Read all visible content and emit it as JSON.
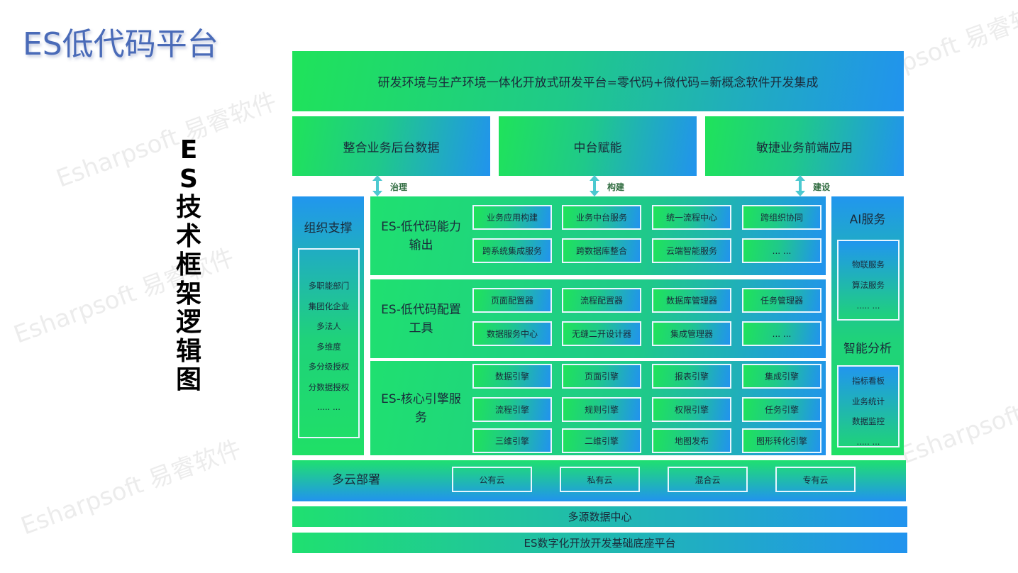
{
  "title": "ES低代码平台",
  "vertical_title": "ES技术框架逻辑图",
  "watermark": "Esharpsoft 易睿软件",
  "colors": {
    "green": "#1fe35a",
    "blue": "#2193ee",
    "title": "#4a6bb8"
  },
  "banner": "研发环境与生产环境一体化开放式研发平台=零代码+微代码=新概念软件开发集成",
  "top_boxes": [
    "整合业务后台数据",
    "中台赋能",
    "敏捷业务前端应用"
  ],
  "arrows": [
    "治理",
    "构建",
    "建设"
  ],
  "org": {
    "title": "组织支撑",
    "items": [
      "多职能部门",
      "集团化企业",
      "多法人",
      "多维度",
      "多分级授权",
      "分数据授权",
      "..... ..."
    ]
  },
  "sections": [
    {
      "label": "ES-低代码能力输出",
      "cells": [
        "业务应用构建",
        "业务中台服务",
        "统一流程中心",
        "跨组织协同",
        "跨系统集成服务",
        "跨数据库整合",
        "云端智能服务",
        "...  ..."
      ]
    },
    {
      "label": "ES-低代码配置工具",
      "cells": [
        "页面配置器",
        "流程配置器",
        "数据库管理器",
        "任务管理器",
        "数据服务中心",
        "无缝二开设计器",
        "集成管理器",
        "...  ..."
      ]
    },
    {
      "label": "ES-核心引擎服务",
      "cells": [
        "数据引擎",
        "页面引擎",
        "报表引擎",
        "集成引擎",
        "流程引擎",
        "规则引擎",
        "权限引擎",
        "任务引擎",
        "三维引擎",
        "二维引擎",
        "地图发布",
        "图形转化引擎"
      ]
    }
  ],
  "ai": {
    "title": "AI服务",
    "items": [
      "物联服务",
      "算法服务",
      "..... ..."
    ],
    "title2": "智能分析",
    "items2": [
      "指标看板",
      "业务统计",
      "数据监控",
      "..... ..."
    ]
  },
  "cloud": {
    "title": "多云部署",
    "items": [
      "公有云",
      "私有云",
      "混合云",
      "专有云"
    ]
  },
  "data_center": "多源数据中心",
  "base": "ES数字化开放开发基础底座平台"
}
